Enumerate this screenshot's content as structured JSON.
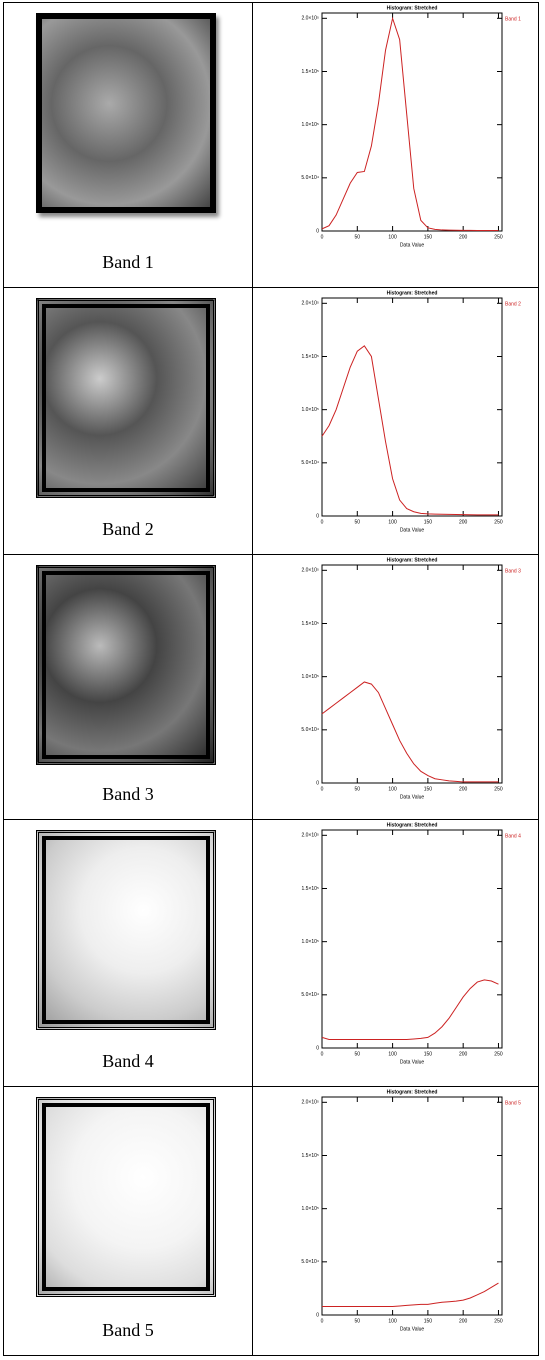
{
  "table": {
    "rows": [
      {
        "caption": "Band 1"
      },
      {
        "caption": "Band 2"
      },
      {
        "caption": "Band 3"
      },
      {
        "caption": "Band 4"
      },
      {
        "caption": "Band 5"
      }
    ]
  },
  "chart_data": [
    {
      "type": "line",
      "title": "Histogram: Stretched",
      "x_label": "Data Value",
      "x": [
        0,
        10,
        20,
        30,
        40,
        50,
        60,
        70,
        80,
        90,
        100,
        110,
        120,
        130,
        140,
        150,
        160,
        170,
        180,
        190,
        200,
        210,
        220,
        230,
        240,
        250
      ],
      "series": [
        {
          "name": "Band 1",
          "color": "#cc2222",
          "values": [
            2000,
            5000,
            15000,
            30000,
            45000,
            55000,
            56000,
            80000,
            120000,
            170000,
            200000,
            180000,
            110000,
            40000,
            10000,
            3000,
            1500,
            1000,
            800,
            700,
            600,
            600,
            500,
            500,
            500,
            500
          ]
        }
      ],
      "xlim": [
        0,
        255
      ],
      "xticks": [
        0,
        50,
        100,
        150,
        200,
        250
      ],
      "ylim": [
        0,
        205000
      ],
      "yticks": [
        0,
        {
          "value": 50000,
          "label": "5.0×10⁴"
        },
        {
          "value": 100000,
          "label": "1.0×10⁵"
        },
        {
          "value": 150000,
          "label": "1.5×10⁵"
        },
        {
          "value": 200000,
          "label": "2.0×10⁵"
        }
      ]
    },
    {
      "type": "line",
      "title": "Histogram: Stretched",
      "x_label": "Data Value",
      "x": [
        0,
        10,
        20,
        30,
        40,
        50,
        60,
        70,
        80,
        90,
        100,
        110,
        120,
        130,
        140,
        150,
        160,
        170,
        180,
        190,
        200,
        210,
        220,
        230,
        240,
        250
      ],
      "series": [
        {
          "name": "Band 2",
          "color": "#cc2222",
          "values": [
            75000,
            85000,
            100000,
            120000,
            140000,
            155000,
            160000,
            150000,
            110000,
            70000,
            35000,
            15000,
            7000,
            4000,
            2500,
            2000,
            1800,
            1600,
            1500,
            1400,
            1300,
            1200,
            1100,
            1000,
            1000,
            1000
          ]
        }
      ],
      "xlim": [
        0,
        255
      ],
      "xticks": [
        0,
        50,
        100,
        150,
        200,
        250
      ],
      "ylim": [
        0,
        205000
      ],
      "yticks": [
        0,
        {
          "value": 50000,
          "label": "5.0×10⁴"
        },
        {
          "value": 100000,
          "label": "1.0×10⁵"
        },
        {
          "value": 150000,
          "label": "1.5×10⁵"
        },
        {
          "value": 200000,
          "label": "2.0×10⁵"
        }
      ]
    },
    {
      "type": "line",
      "title": "Histogram: Stretched",
      "x_label": "Data Value",
      "x": [
        0,
        10,
        20,
        30,
        40,
        50,
        60,
        70,
        80,
        90,
        100,
        110,
        120,
        130,
        140,
        150,
        160,
        170,
        180,
        190,
        200,
        210,
        220,
        230,
        240,
        250
      ],
      "series": [
        {
          "name": "Band 3",
          "color": "#cc2222",
          "values": [
            65000,
            70000,
            75000,
            80000,
            85000,
            90000,
            95000,
            93000,
            85000,
            70000,
            55000,
            40000,
            28000,
            18000,
            11000,
            7000,
            4000,
            3000,
            2000,
            1500,
            1000,
            1000,
            1000,
            1000,
            1000,
            1000
          ]
        }
      ],
      "xlim": [
        0,
        255
      ],
      "xticks": [
        0,
        50,
        100,
        150,
        200,
        250
      ],
      "ylim": [
        0,
        205000
      ],
      "yticks": [
        0,
        {
          "value": 50000,
          "label": "5.0×10⁴"
        },
        {
          "value": 100000,
          "label": "1.0×10⁵"
        },
        {
          "value": 150000,
          "label": "1.5×10⁵"
        },
        {
          "value": 200000,
          "label": "2.0×10⁵"
        }
      ]
    },
    {
      "type": "line",
      "title": "Histogram: Stretched",
      "x_label": "Data Value",
      "x": [
        0,
        10,
        20,
        30,
        40,
        50,
        60,
        70,
        80,
        90,
        100,
        110,
        120,
        130,
        140,
        150,
        160,
        170,
        180,
        190,
        200,
        210,
        220,
        230,
        240,
        250
      ],
      "series": [
        {
          "name": "Band 4",
          "color": "#cc2222",
          "values": [
            10000,
            8000,
            8000,
            8000,
            8000,
            8000,
            8000,
            8000,
            8000,
            8000,
            8000,
            8000,
            8000,
            8500,
            9000,
            10000,
            14000,
            20000,
            28000,
            38000,
            48000,
            56000,
            62000,
            64000,
            63000,
            60000
          ]
        }
      ],
      "xlim": [
        0,
        255
      ],
      "xticks": [
        0,
        50,
        100,
        150,
        200,
        250
      ],
      "ylim": [
        0,
        205000
      ],
      "yticks": [
        0,
        {
          "value": 50000,
          "label": "5.0×10⁴"
        },
        {
          "value": 100000,
          "label": "1.0×10⁵"
        },
        {
          "value": 150000,
          "label": "1.5×10⁵"
        },
        {
          "value": 200000,
          "label": "2.0×10⁵"
        }
      ]
    },
    {
      "type": "line",
      "title": "Histogram: Stretched",
      "x_label": "Data Value",
      "x": [
        0,
        10,
        20,
        30,
        40,
        50,
        60,
        70,
        80,
        90,
        100,
        110,
        120,
        130,
        140,
        150,
        160,
        170,
        180,
        190,
        200,
        210,
        220,
        230,
        240,
        250
      ],
      "series": [
        {
          "name": "Band 5",
          "color": "#cc2222",
          "values": [
            8000,
            8000,
            8000,
            8000,
            8000,
            8000,
            8000,
            8000,
            8000,
            8000,
            8000,
            8500,
            9000,
            9500,
            10000,
            10000,
            11000,
            12000,
            12500,
            13000,
            14000,
            16000,
            19000,
            22000,
            26000,
            30000
          ]
        }
      ],
      "xlim": [
        0,
        255
      ],
      "xticks": [
        0,
        50,
        100,
        150,
        200,
        250
      ],
      "ylim": [
        0,
        205000
      ],
      "yticks": [
        0,
        {
          "value": 50000,
          "label": "5.0×10⁴"
        },
        {
          "value": 100000,
          "label": "1.0×10⁵"
        },
        {
          "value": 150000,
          "label": "1.5×10⁵"
        },
        {
          "value": 200000,
          "label": "2.0×10⁵"
        }
      ]
    }
  ]
}
